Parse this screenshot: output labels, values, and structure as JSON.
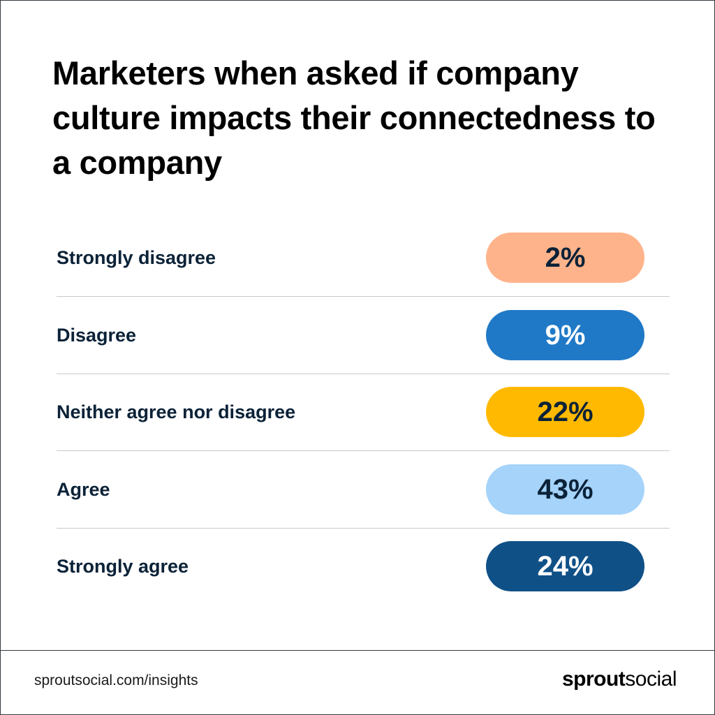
{
  "title": "Marketers when asked if company culture impacts their connectedness to a company",
  "chart_data": {
    "type": "table",
    "categories": [
      "Strongly disagree",
      "Disagree",
      "Neither agree nor disagree",
      "Agree",
      "Strongly agree"
    ],
    "values": [
      2,
      9,
      22,
      43,
      24
    ],
    "value_labels": [
      "2%",
      "9%",
      "22%",
      "43%",
      "24%"
    ],
    "unit": "%",
    "colors": [
      "#ffb38a",
      "#2079c7",
      "#ffb900",
      "#a5d3fa",
      "#0f5087"
    ],
    "label_colors": [
      "#0b2238",
      "#ffffff",
      "#0b2238",
      "#0b2238",
      "#ffffff"
    ]
  },
  "footer": {
    "url": "sproutsocial.com/insights",
    "logo_bold": "sprout",
    "logo_light": "social"
  }
}
